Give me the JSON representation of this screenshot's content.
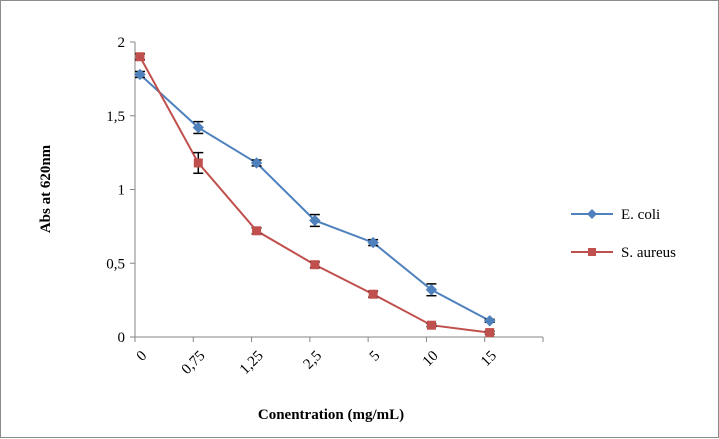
{
  "chart_data": {
    "type": "line",
    "categories": [
      "0",
      "0,75",
      "1,25",
      "2,5",
      "5",
      "10",
      "15"
    ],
    "xlabel": "Conentration (mg/mL)",
    "ylabel": "Abs at 620nm",
    "ylim": [
      0,
      2
    ],
    "y_ticks": [
      0,
      0.5,
      1,
      1.5,
      2
    ],
    "y_tick_labels": [
      "0",
      "0,5",
      "1",
      "1,5",
      "2"
    ],
    "grid": false,
    "legend_position": "right",
    "series": [
      {
        "name": "E. coli",
        "color": "#4f81bd",
        "marker": "diamond",
        "values": [
          1.78,
          1.42,
          1.18,
          0.79,
          0.64,
          0.32,
          0.11
        ],
        "errors": [
          0.02,
          0.04,
          0.02,
          0.04,
          0.02,
          0.04,
          0.01
        ]
      },
      {
        "name": "S. aureus",
        "color": "#c0504d",
        "marker": "square",
        "values": [
          1.9,
          1.18,
          0.72,
          0.49,
          0.29,
          0.08,
          0.03
        ],
        "errors": [
          0.02,
          0.07,
          0.02,
          0.02,
          0.02,
          0.01,
          0.01
        ]
      }
    ]
  }
}
